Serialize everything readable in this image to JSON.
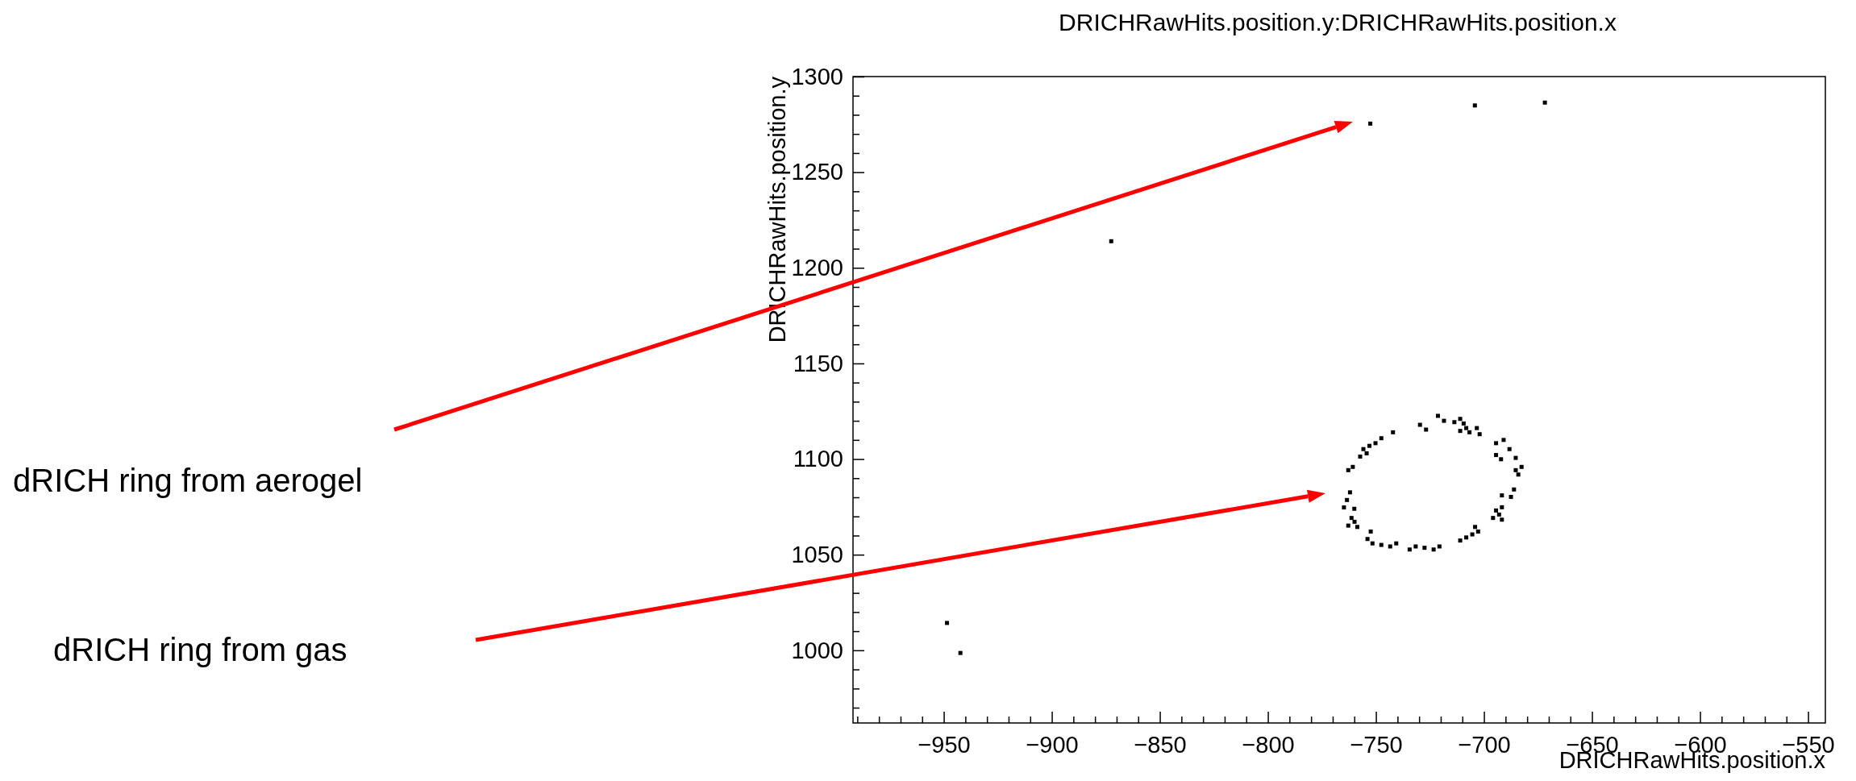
{
  "chart_data": {
    "type": "scatter",
    "title": "DRICHRawHits.position.y:DRICHRawHits.position.x",
    "xlabel": "DRICHRawHits.position.x",
    "ylabel": "DRICHRawHits.position.y",
    "xlim": [
      -992,
      -542
    ],
    "ylim": [
      962,
      1300
    ],
    "xticks": [
      {
        "value": -990,
        "label": null
      },
      {
        "value": -980,
        "label": null
      },
      {
        "value": -970,
        "label": null
      },
      {
        "value": -960,
        "label": null
      },
      {
        "value": -950,
        "label": "−950"
      },
      {
        "value": -940,
        "label": null
      },
      {
        "value": -930,
        "label": null
      },
      {
        "value": -920,
        "label": null
      },
      {
        "value": -910,
        "label": null
      },
      {
        "value": -900,
        "label": "−900"
      },
      {
        "value": -890,
        "label": null
      },
      {
        "value": -880,
        "label": null
      },
      {
        "value": -870,
        "label": null
      },
      {
        "value": -860,
        "label": null
      },
      {
        "value": -850,
        "label": "−850"
      },
      {
        "value": -840,
        "label": null
      },
      {
        "value": -830,
        "label": null
      },
      {
        "value": -820,
        "label": null
      },
      {
        "value": -810,
        "label": null
      },
      {
        "value": -800,
        "label": "−800"
      },
      {
        "value": -790,
        "label": null
      },
      {
        "value": -780,
        "label": null
      },
      {
        "value": -770,
        "label": null
      },
      {
        "value": -760,
        "label": null
      },
      {
        "value": -750,
        "label": "−750"
      },
      {
        "value": -740,
        "label": null
      },
      {
        "value": -730,
        "label": null
      },
      {
        "value": -720,
        "label": null
      },
      {
        "value": -710,
        "label": null
      },
      {
        "value": -700,
        "label": "−700"
      },
      {
        "value": -690,
        "label": null
      },
      {
        "value": -680,
        "label": null
      },
      {
        "value": -670,
        "label": null
      },
      {
        "value": -660,
        "label": null
      },
      {
        "value": -650,
        "label": "−650"
      },
      {
        "value": -640,
        "label": null
      },
      {
        "value": -630,
        "label": null
      },
      {
        "value": -620,
        "label": null
      },
      {
        "value": -610,
        "label": null
      },
      {
        "value": -600,
        "label": "−600"
      },
      {
        "value": -590,
        "label": null
      },
      {
        "value": -580,
        "label": null
      },
      {
        "value": -570,
        "label": null
      },
      {
        "value": -560,
        "label": null
      },
      {
        "value": -550,
        "label": "−550"
      }
    ],
    "yticks": [
      {
        "value": 970,
        "label": null
      },
      {
        "value": 980,
        "label": null
      },
      {
        "value": 990,
        "label": null
      },
      1000,
      {
        "value": 1010,
        "label": null
      },
      {
        "value": 1020,
        "label": null
      },
      {
        "value": 1030,
        "label": null
      },
      {
        "value": 1040,
        "label": null
      },
      1050,
      {
        "value": 1060,
        "label": null
      },
      {
        "value": 1070,
        "label": null
      },
      {
        "value": 1080,
        "label": null
      },
      {
        "value": 1090,
        "label": null
      },
      1100,
      {
        "value": 1110,
        "label": null
      },
      {
        "value": 1120,
        "label": null
      },
      {
        "value": 1130,
        "label": null
      },
      {
        "value": 1140,
        "label": null
      },
      1150,
      {
        "value": 1160,
        "label": null
      },
      {
        "value": 1170,
        "label": null
      },
      {
        "value": 1180,
        "label": null
      },
      {
        "value": 1190,
        "label": null
      },
      1200,
      {
        "value": 1210,
        "label": null
      },
      {
        "value": 1220,
        "label": null
      },
      {
        "value": 1230,
        "label": null
      },
      {
        "value": 1240,
        "label": null
      },
      1250,
      {
        "value": 1260,
        "label": null
      },
      {
        "value": 1270,
        "label": null
      },
      {
        "value": 1280,
        "label": null
      },
      {
        "value": 1290,
        "label": null
      },
      1300
    ],
    "marker": "square",
    "grid": false,
    "series": [
      {
        "color": "#000000",
        "x": [
          -752.6,
          -704.2,
          -671.8,
          -872.5,
          -948.5,
          -942.3,
          -721.3,
          -718.5,
          -729.6,
          -726.8,
          -713.7,
          -711.0,
          -709.4,
          -708.2,
          -711.0,
          -706.7,
          -703.3,
          -702.0,
          -742.1,
          -747.5,
          -750.2,
          -753.0,
          -755.8,
          -754.3,
          -757.3,
          -760.7,
          -762.8,
          -694.4,
          -690.9,
          -688.2,
          -694.4,
          -692.1,
          -685.3,
          -682.6,
          -685.3,
          -684.1,
          -686.1,
          -687.5,
          -691.7,
          -691.7,
          -694.4,
          -693.0,
          -695.8,
          -691.7,
          -762.0,
          -763.4,
          -764.8,
          -760.0,
          -761.3,
          -759.9,
          -762.8,
          -758.6,
          -752.4,
          -753.9,
          -751.6,
          -747.5,
          -743.4,
          -740.6,
          -734.4,
          -731.6,
          -727.5,
          -723.3,
          -720.6,
          -711.0,
          -708.2,
          -705.4,
          -702.7,
          -704.1
        ],
        "values": [
          1275.4,
          1284.9,
          1286.4,
          1213.9,
          1014.3,
          998.6,
          1122.6,
          1120.0,
          1117.9,
          1115.4,
          1119.3,
          1121.0,
          1118.6,
          1116.2,
          1114.7,
          1114.0,
          1116.2,
          1113.0,
          1114.0,
          1110.9,
          1108.3,
          1106.9,
          1105.2,
          1103.0,
          1101.3,
          1095.9,
          1094.2,
          1108.3,
          1110.0,
          1105.2,
          1102.1,
          1099.9,
          1100.6,
          1095.9,
          1094.2,
          1091.9,
          1084.1,
          1080.2,
          1081.0,
          1074.8,
          1073.1,
          1071.0,
          1069.2,
          1068.3,
          1082.6,
          1078.6,
          1074.7,
          1074.0,
          1069.2,
          1067.2,
          1065.2,
          1064.5,
          1062.1,
          1058.2,
          1055.9,
          1055.1,
          1054.3,
          1055.9,
          1052.7,
          1054.3,
          1053.6,
          1052.7,
          1054.3,
          1057.4,
          1059.0,
          1060.6,
          1062.1,
          1064.5
        ]
      }
    ],
    "annotations": [
      "dRICH ring from aerogel",
      "dRICH ring from gas"
    ]
  }
}
